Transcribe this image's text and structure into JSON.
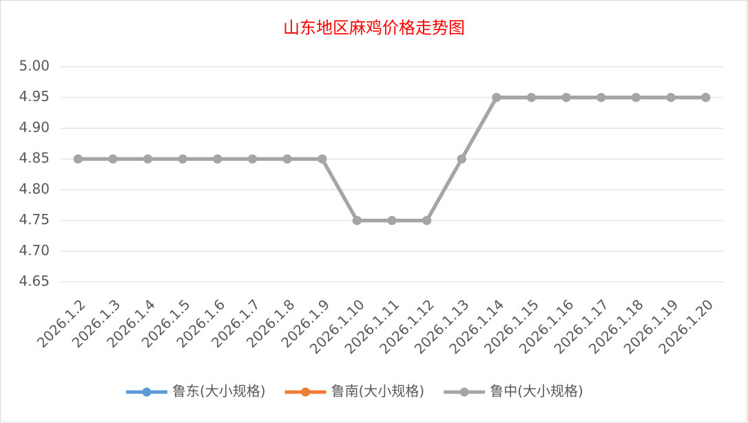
{
  "chart_data": {
    "type": "line",
    "title": "山东地区麻鸡价格走势图",
    "categories": [
      "2026.1.2",
      "2026.1.3",
      "2026.1.4",
      "2026.1.5",
      "2026.1.6",
      "2026.1.7",
      "2026.1.8",
      "2026.1.9",
      "2026.1.10",
      "2026.1.11",
      "2026.1.12",
      "2026.1.13",
      "2026.1.14",
      "2026.1.15",
      "2026.1.16",
      "2026.1.17",
      "2026.1.18",
      "2026.1.19",
      "2026.1.20"
    ],
    "series": [
      {
        "name": "鲁东(大小规格)",
        "color": "#5b9bd5",
        "values": [
          4.85,
          4.85,
          4.85,
          4.85,
          4.85,
          4.85,
          4.85,
          4.85,
          4.75,
          4.75,
          4.75,
          4.85,
          4.95,
          4.95,
          4.95,
          4.95,
          4.95,
          4.95,
          4.95
        ]
      },
      {
        "name": "鲁南(大小规格)",
        "color": "#ed7d31",
        "values": [
          4.85,
          4.85,
          4.85,
          4.85,
          4.85,
          4.85,
          4.85,
          4.85,
          4.75,
          4.75,
          4.75,
          4.85,
          4.95,
          4.95,
          4.95,
          4.95,
          4.95,
          4.95,
          4.95
        ]
      },
      {
        "name": "鲁中(大小规格)",
        "color": "#a5a5a5",
        "values": [
          4.85,
          4.85,
          4.85,
          4.85,
          4.85,
          4.85,
          4.85,
          4.85,
          4.75,
          4.75,
          4.75,
          4.85,
          4.95,
          4.95,
          4.95,
          4.95,
          4.95,
          4.95,
          4.95
        ]
      }
    ],
    "ylim": [
      4.65,
      5.0
    ],
    "yticks": [
      4.65,
      {
        "value": 4.7,
        "label": "4.70"
      },
      4.75,
      {
        "value": 4.8,
        "label": "4.80"
      },
      4.85,
      {
        "value": 4.9,
        "label": "4.90"
      },
      4.95,
      {
        "value": 5.0,
        "label": "5.00"
      }
    ],
    "grid": true,
    "title_color": "#ff0000",
    "legend": "bottom"
  }
}
